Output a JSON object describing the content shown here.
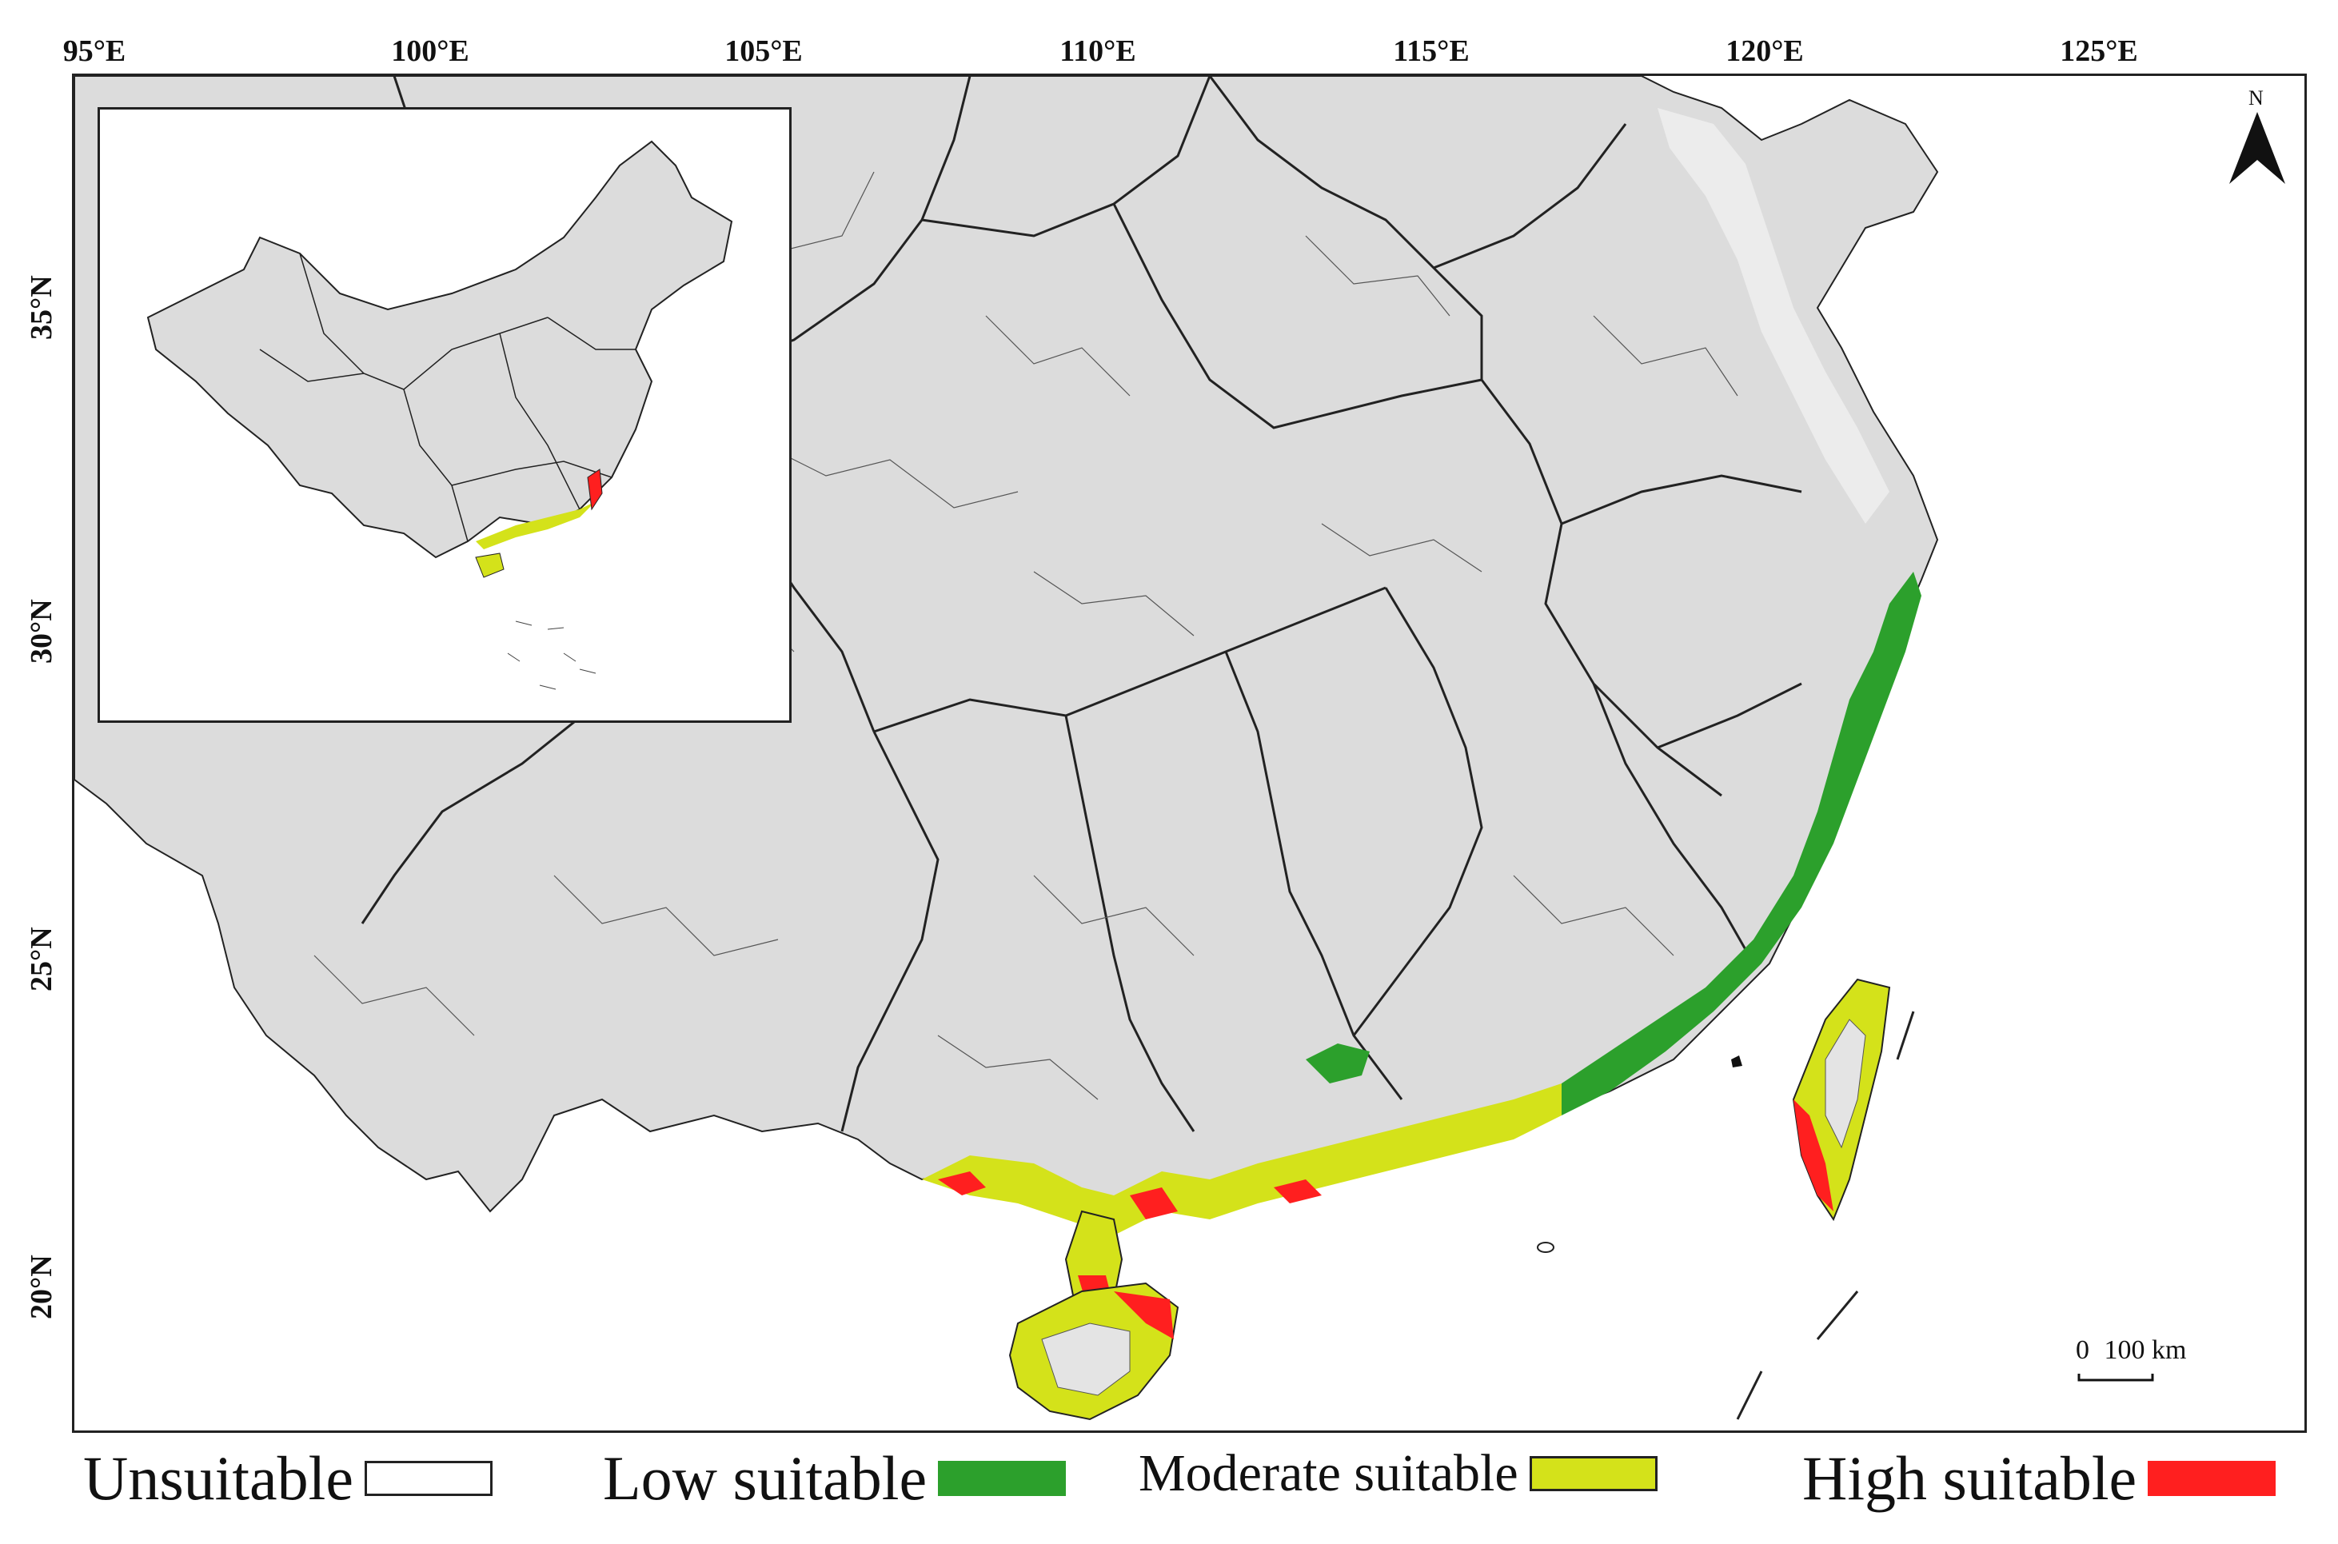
{
  "map": {
    "longitude_labels": [
      "95°E",
      "100°E",
      "105°E",
      "110°E",
      "115°E",
      "120°E",
      "125°E"
    ],
    "latitude_labels": [
      "35°N",
      "30°N",
      "25°N",
      "20°N"
    ],
    "north_label": "N",
    "scale_zero": "0",
    "scale_label": "100 km",
    "land_color": "#dcdcdc",
    "border_color": "#222222"
  },
  "legend": {
    "items": [
      {
        "label": "Unsuitable",
        "color": "#ffffff"
      },
      {
        "label": "Low suitable",
        "color": "#2ca02c"
      },
      {
        "label": "Moderate suitable",
        "color": "#d4e21a"
      },
      {
        "label": "High suitable",
        "color": "#ff1f1f"
      }
    ]
  }
}
